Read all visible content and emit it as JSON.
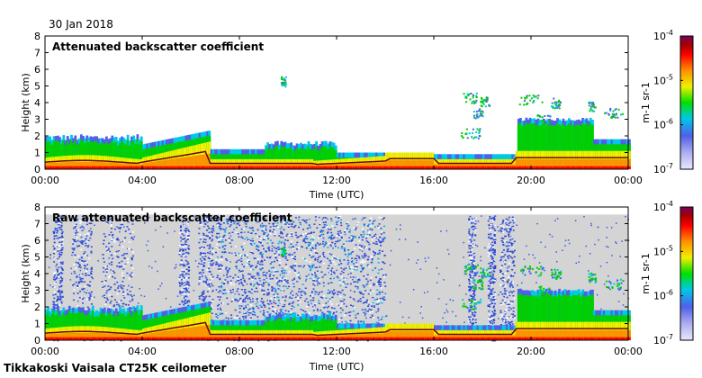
{
  "date": "30 Jan 2018",
  "footer": "Tikkakoski Vaisala CT25K ceilometer",
  "colors": {
    "background_raw": "#d4d4d4",
    "colormap": [
      "#e8e8ff",
      "#b0b0f0",
      "#5060e8",
      "#00c8e8",
      "#00e000",
      "#f0f000",
      "#ff9000",
      "#ff0000",
      "#a00000",
      "#7a006a"
    ]
  },
  "chart_data": [
    {
      "type": "heatmap",
      "title": "Attenuated backscatter coefficient",
      "xlabel": "Time (UTC)",
      "ylabel": "Height (km)",
      "xticks": [
        "00:00",
        "04:00",
        "08:00",
        "12:00",
        "16:00",
        "20:00",
        "00:00"
      ],
      "yticks": [
        "0",
        "1",
        "2",
        "3",
        "4",
        "5",
        "6",
        "7",
        "8"
      ],
      "ylim": [
        0,
        8
      ],
      "xlim_hours": [
        0,
        24
      ],
      "colorbar": {
        "label": "m-1 sr-1",
        "scale": "log",
        "range": [
          1e-07,
          0.0001
        ],
        "ticks": [
          "10-7",
          "10-6",
          "10-5",
          "10-4"
        ]
      }
    },
    {
      "type": "heatmap",
      "title": "Raw attenuated backscatter coefficient",
      "xlabel": "Time (UTC)",
      "ylabel": "Height (km)",
      "xticks": [
        "00:00",
        "04:00",
        "08:00",
        "12:00",
        "16:00",
        "20:00",
        "00:00"
      ],
      "yticks": [
        "0",
        "1",
        "2",
        "3",
        "4",
        "5",
        "6",
        "7",
        "8"
      ],
      "ylim": [
        0,
        8
      ],
      "xlim_hours": [
        0,
        24
      ],
      "colorbar": {
        "label": "m-1 sr-1",
        "scale": "log",
        "range": [
          1e-07,
          0.0001
        ],
        "ticks": [
          "10-7",
          "10-6",
          "10-5",
          "10-4"
        ]
      }
    }
  ]
}
